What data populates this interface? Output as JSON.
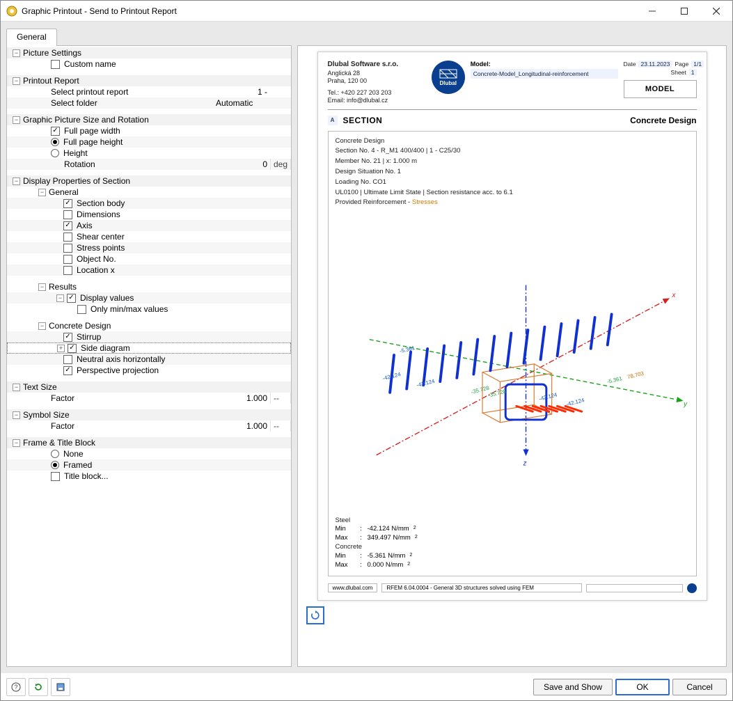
{
  "window": {
    "title": "Graphic Printout - Send to Printout Report"
  },
  "tabs": {
    "general": "General"
  },
  "groups": {
    "picture_settings": {
      "title": "Picture Settings",
      "custom_name": "Custom name"
    },
    "printout_report": {
      "title": "Printout Report",
      "select_report": "Select printout report",
      "select_report_val": "1 -",
      "select_folder": "Select folder",
      "select_folder_val": "Automatic"
    },
    "gpsr": {
      "title": "Graphic Picture Size and Rotation",
      "full_width": "Full page width",
      "full_height": "Full page height",
      "height": "Height",
      "rotation": "Rotation",
      "rotation_val": "0",
      "rotation_unit": "deg"
    },
    "disp_props": {
      "title": "Display Properties of Section",
      "general": "General",
      "section_body": "Section body",
      "dimensions": "Dimensions",
      "axis": "Axis",
      "shear_center": "Shear center",
      "stress_points": "Stress points",
      "object_no": "Object No.",
      "location_x": "Location x",
      "results": "Results",
      "display_values": "Display values",
      "only_min_max": "Only min/max values",
      "concrete_design": "Concrete Design",
      "stirrup": "Stirrup",
      "side_diagram": "Side diagram",
      "neutral_axis": "Neutral axis horizontally",
      "perspective": "Perspective projection"
    },
    "text_size": {
      "title": "Text Size",
      "factor": "Factor",
      "factor_val": "1.000",
      "unit": "--"
    },
    "symbol_size": {
      "title": "Symbol Size",
      "factor": "Factor",
      "factor_val": "1.000",
      "unit": "--"
    },
    "frame": {
      "title": "Frame & Title Block",
      "none": "None",
      "framed": "Framed",
      "title_block": "Title block..."
    }
  },
  "buttons": {
    "save_show": "Save and Show",
    "ok": "OK",
    "cancel": "Cancel"
  },
  "preview": {
    "company": "Dlubal Software s.r.o.",
    "addr1": "Anglická 28",
    "addr2": "Praha, 120 00",
    "tel": "Tel.: +420 227 203 203",
    "email": "Email: info@dlubal.cz",
    "logo_text": "Dlubal",
    "model_lbl": "Model:",
    "model_name": "Concrete-Model_Longitudinal-reinforcement",
    "date_lbl": "Date",
    "date_val": "23.11.2023",
    "page_lbl": "Page",
    "page_val": "1/1",
    "sheet_lbl": "Sheet",
    "sheet_val": "1",
    "model_box": "MODEL",
    "section_badge": "A",
    "section_title": "SECTION",
    "section_right": "Concrete Design",
    "meta": {
      "l1": "Concrete Design",
      "l2": "Section No. 4 - R_M1 400/400 | 1 - C25/30",
      "l3": "Member No. 21 | x: 1.000 m",
      "l4": "Design Situation No. 1",
      "l5": "Loading No. CO1",
      "l6": "UL0100 | Ultimate Limit State | Section resistance acc. to 6.1",
      "l7a": "Provided Reinforcement",
      "l7b": "Stresses"
    },
    "diagram_labels": {
      "x": "x",
      "y": "y",
      "z": "z",
      "v1": "-5.361",
      "v2": "-42.124",
      "v3": "-42.124",
      "v4": "-35.728",
      "v5": "78.703"
    },
    "values": {
      "steel": "Steel",
      "steel_min": "-42.124 N/mm",
      "steel_max": "349.497 N/mm",
      "concrete": "Concrete",
      "conc_min": "-5.361 N/mm",
      "conc_max": "0.000 N/mm"
    },
    "footer": {
      "site": "www.dlubal.com",
      "ver": "RFEM 6.04.0004 - General 3D structures solved using FEM"
    }
  },
  "colors": {
    "accent": "#2b6cd3",
    "axis_x": "#d62020",
    "axis_y": "#19a319",
    "axis_z": "#1030d0",
    "rebar": "#1030d0",
    "stress": "#ff2a00",
    "box_outline": "#d97a30",
    "label_blue": "#1158c4",
    "label_green": "#23a047"
  }
}
